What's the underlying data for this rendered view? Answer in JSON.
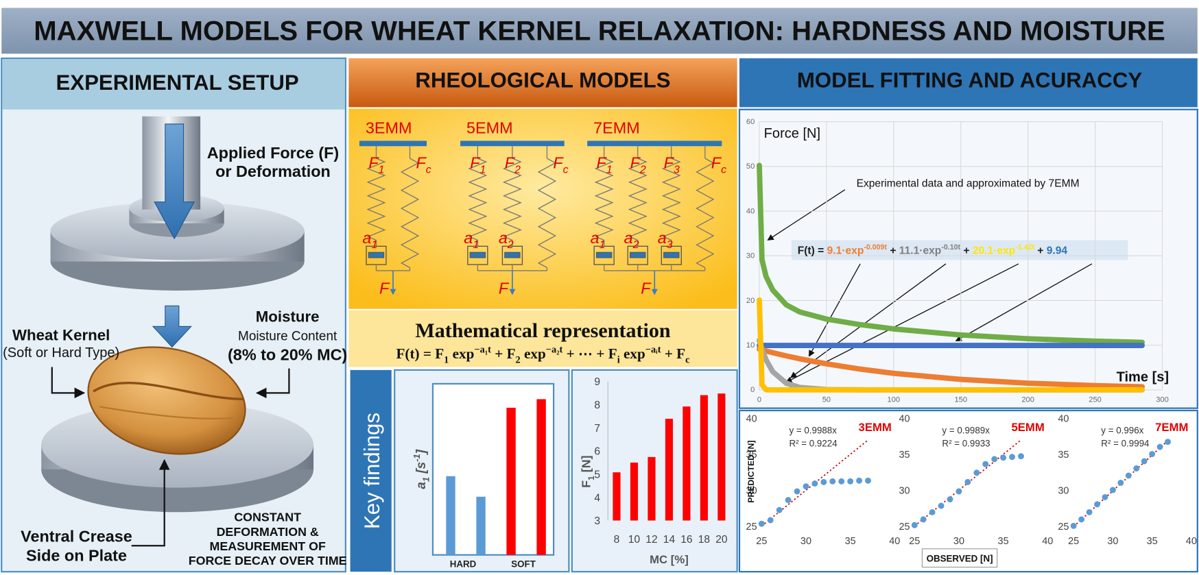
{
  "title": "MAXWELL MODELS FOR WHEAT KERNEL RELAXATION: HARDNESS AND MOISTURE",
  "setup": {
    "heading": "EXPERIMENTAL SETUP",
    "force_label": [
      "Applied Force (F)",
      "or Deformation"
    ],
    "kernel_label": [
      "Wheat Kernel",
      "(Soft or Hard Type)"
    ],
    "moisture_label": [
      "Moisture",
      "Moisture Content",
      "(8% to 20% MC)"
    ],
    "crease_label": [
      "Ventral Crease",
      "Side on Plate"
    ],
    "method_label": [
      "CONSTANT",
      "DEFORMATION &",
      "MEASUREMENT OF",
      "FORCE DECAY OVER TIME"
    ]
  },
  "models": {
    "heading": "RHEOLOGICAL MODELS",
    "items": [
      {
        "name": "3EMM",
        "springs": [
          [
            {
              "text": "F"
            },
            {
              "sub": "1"
            }
          ],
          [
            {
              "text": "F"
            },
            {
              "sub": "c"
            }
          ]
        ],
        "dampers": [
          [
            {
              "text": "a"
            },
            {
              "sub": "1"
            }
          ]
        ],
        "output": "F"
      },
      {
        "name": "5EMM",
        "springs": [
          [
            {
              "text": "F"
            },
            {
              "sub": "1"
            }
          ],
          [
            {
              "text": "F"
            },
            {
              "sub": "2"
            }
          ],
          [
            {
              "text": "F"
            },
            {
              "sub": "c"
            }
          ]
        ],
        "dampers": [
          [
            {
              "text": "a"
            },
            {
              "sub": "1"
            }
          ],
          [
            {
              "text": "a"
            },
            {
              "sub": "2"
            }
          ]
        ],
        "output": "F"
      },
      {
        "name": "7EMM",
        "springs": [
          [
            {
              "text": "F"
            },
            {
              "sub": "1"
            }
          ],
          [
            {
              "text": "F"
            },
            {
              "sub": "2"
            }
          ],
          [
            {
              "text": "F"
            },
            {
              "sub": "3"
            }
          ],
          [
            {
              "text": "F"
            },
            {
              "sub": "c"
            }
          ]
        ],
        "dampers": [
          [
            {
              "text": "a"
            },
            {
              "sub": "1"
            }
          ],
          [
            {
              "text": "a"
            },
            {
              "sub": "2"
            }
          ],
          [
            {
              "text": "a"
            },
            {
              "sub": "3"
            }
          ]
        ],
        "output": "F"
      }
    ],
    "math_heading": "Mathematical representation",
    "equation": [
      {
        "text": "F(t) = F"
      },
      {
        "sub": "1"
      },
      {
        "text": " exp"
      },
      {
        "sup": "−a₁t"
      },
      {
        "text": " + F"
      },
      {
        "sub": "2"
      },
      {
        "text": " exp"
      },
      {
        "sup": "−a₂t"
      },
      {
        "text": " + ⋯ + F"
      },
      {
        "sub": "i"
      },
      {
        "text": " exp"
      },
      {
        "sup": "−aᵢt"
      },
      {
        "text": " + F"
      },
      {
        "sub": "c"
      }
    ]
  },
  "findings": {
    "label": "Key findings",
    "rate_chart": {
      "y_label": [
        {
          "text": "a"
        },
        {
          "sub": "1"
        },
        {
          "text": " [s"
        },
        {
          "sup": "-1"
        },
        {
          "text": "]"
        }
      ],
      "ylim": [
        0,
        1
      ],
      "groups": [
        {
          "label": "HARD",
          "color": "#5b9bd5",
          "values": [
            0.46,
            0.34
          ]
        },
        {
          "label": "SOFT",
          "color": "#ff0000",
          "values": [
            0.86,
            0.91
          ]
        }
      ]
    },
    "force_chart": {
      "y_label": [
        {
          "text": "F"
        },
        {
          "sub": "1"
        },
        {
          "text": " [N]"
        }
      ],
      "x_label": "MC [%]",
      "color": "#ff0000",
      "categories": [
        8,
        10,
        12,
        14,
        16,
        18,
        20
      ],
      "values": [
        5.08,
        5.5,
        5.74,
        7.39,
        7.92,
        8.41,
        8.48
      ],
      "ylim": [
        3,
        9
      ],
      "yticks": [
        3,
        4,
        5,
        6,
        7,
        8,
        9
      ]
    }
  },
  "fitting": {
    "heading": "MODEL FITTING AND ACURACCY",
    "relaxation_chart": {
      "type": "line",
      "y_label": "Force [N]",
      "x_label": "Time [s]",
      "annotation": "Experimental data and approximated by 7EMM",
      "equation": [
        {
          "text": "F(t) = ",
          "color": "#1f1f1f"
        },
        {
          "text": "9.1·exp",
          "color": "#ed7d31"
        },
        {
          "sup": "-0.009t",
          "color": "#ed7d31"
        },
        {
          "text": " + ",
          "color": "#1f1f1f"
        },
        {
          "text": "11.1·exp",
          "color": "#7f7f7f"
        },
        {
          "sup": "-0.10t",
          "color": "#7f7f7f"
        },
        {
          "text": " + ",
          "color": "#1f1f1f"
        },
        {
          "text": "20.1·exp",
          "color": "#ffe600"
        },
        {
          "sup": "-1.42t",
          "color": "#ffe600"
        },
        {
          "text": " + ",
          "color": "#1f1f1f"
        },
        {
          "text": "9.94",
          "color": "#2e75b6"
        }
      ],
      "x": [
        0,
        2,
        5,
        10,
        20,
        30,
        50,
        75,
        100,
        150,
        200,
        250,
        285
      ],
      "series": [
        {
          "color": "#70ad47",
          "values": [
            50.24,
            29.14,
            25.39,
            22.34,
            19.05,
            17.45,
            15.84,
            14.6,
            13.64,
            12.29,
            11.44,
            10.9,
            10.64
          ]
        },
        {
          "color": "#4472c4",
          "values": [
            9.94,
            9.94,
            9.94,
            9.94,
            9.94,
            9.94,
            9.94,
            9.94,
            9.94,
            9.94,
            9.94,
            9.94,
            9.94
          ]
        },
        {
          "color": "#ed7d31",
          "values": [
            9.1,
            8.94,
            8.7,
            8.32,
            7.61,
            6.96,
            5.83,
            4.65,
            3.7,
            2.35,
            1.5,
            0.96,
            0.7
          ]
        },
        {
          "color": "#a5a5a5",
          "values": [
            11.1,
            9.09,
            6.73,
            4.08,
            1.5,
            0.55,
            0.07,
            0.01,
            0,
            0,
            0,
            0,
            0
          ]
        },
        {
          "color": "#ffc000",
          "values": [
            20.1,
            1.17,
            0.02,
            0,
            0,
            0,
            0,
            0,
            0,
            0,
            0,
            0,
            0
          ]
        }
      ],
      "xlim": [
        0,
        300
      ],
      "ylim": [
        0,
        60
      ],
      "xticks": [
        0,
        50,
        100,
        150,
        200,
        250,
        300
      ],
      "yticks": [
        0,
        10,
        20,
        30,
        40,
        50,
        60
      ],
      "grid": true
    },
    "accuracy": {
      "type": "scatter",
      "y_label": "PREDICTED [N]",
      "x_label": "OBSERVED [N]",
      "point_color": "#5b9bd5",
      "trend_color": "#c00000",
      "xlim": [
        25,
        40
      ],
      "ylim": [
        25,
        40
      ],
      "xticks": [
        25,
        30,
        35,
        40
      ],
      "yticks": [
        25,
        30,
        35,
        40
      ],
      "plots": [
        {
          "name": "3EMM",
          "equation": "y = 0.9988x",
          "slope": 0.9988,
          "r2": "R² = 0.9224",
          "observed": [
            25,
            26,
            27,
            28,
            29,
            30,
            31,
            32,
            33,
            34,
            35,
            36,
            37
          ],
          "predicted": [
            25.3,
            25.8,
            27.2,
            28.6,
            29.8,
            30.5,
            30.9,
            31.1,
            31.2,
            31.2,
            31.2,
            31.3,
            31.3
          ]
        },
        {
          "name": "5EMM",
          "equation": "y = 0.9989x",
          "slope": 0.9989,
          "r2": "R² = 0.9933",
          "observed": [
            25,
            26,
            27,
            28,
            29,
            30,
            31,
            32,
            33,
            34,
            35,
            36,
            37
          ],
          "predicted": [
            25.1,
            25.9,
            26.9,
            27.8,
            28.7,
            29.8,
            31.1,
            32.4,
            33.6,
            34.3,
            34.5,
            34.6,
            34.7
          ]
        },
        {
          "name": "7EMM",
          "equation": "y = 0.996x",
          "slope": 0.996,
          "r2": "R² = 0.9994",
          "observed": [
            25,
            26,
            27,
            28,
            29,
            30,
            31,
            32,
            33,
            34,
            35,
            36,
            37
          ],
          "predicted": [
            25,
            25.9,
            26.9,
            28,
            29,
            30,
            31,
            32,
            33,
            34,
            35,
            36,
            36.7
          ]
        }
      ]
    }
  }
}
